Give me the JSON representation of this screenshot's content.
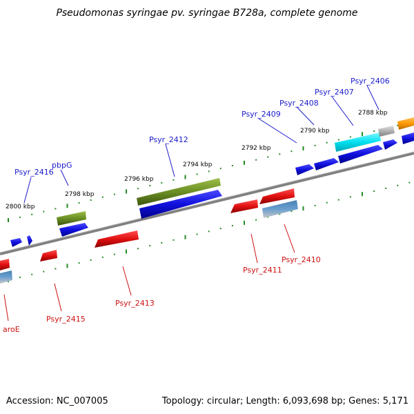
{
  "title": "Pseudomonas syringae pv. syringae B728a, complete genome",
  "footer": {
    "accession": "Accession: NC_007005",
    "topology": "Topology: circular; Length: 6,093,698 bp; Genes: 5,171"
  },
  "ruler": [
    "2800 kbp",
    "2798 kbp",
    "2796 kbp",
    "2794 kbp",
    "2792 kbp",
    "2790 kbp",
    "2788 kbp"
  ],
  "top_labels": [
    "Psyr_2416",
    "pbpG",
    "Psyr_2412",
    "Psyr_2409",
    "Psyr_2408",
    "Psyr_2407",
    "Psyr_2406"
  ],
  "bottom_labels": [
    "aroE",
    "Psyr_2415",
    "Psyr_2413",
    "Psyr_2411",
    "Psyr_2410"
  ],
  "colors": {
    "blue": "#1010dd",
    "red": "#e01010",
    "olive": "#6b8e23",
    "cyan": "#00e0f0",
    "gray": "#b0b0b0",
    "orange": "#ff9900",
    "steel": "#4682b4",
    "backbone": "#808080",
    "tick": "#228b22",
    "label_blue": "#1a1acc",
    "label_red": "#cc1111"
  }
}
